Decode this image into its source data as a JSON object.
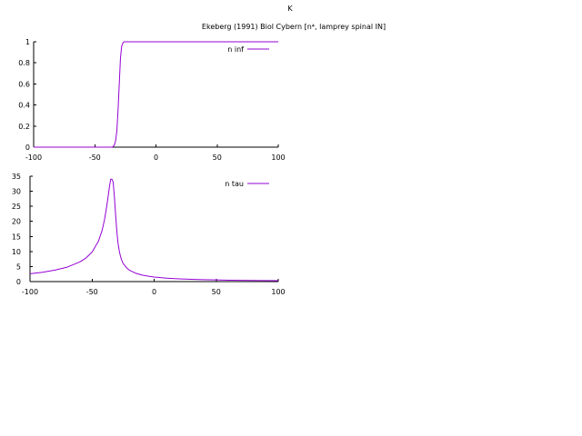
{
  "page": {
    "title": "K",
    "subtitle": "Ekeberg (1991) Biol Cybern [n⁴, lamprey spinal IN]"
  },
  "colors": {
    "series": "#9400d3",
    "axis": "#000000",
    "background": "#ffffff"
  },
  "chart_data": [
    {
      "type": "line",
      "title": "",
      "xlabel": "",
      "ylabel": "",
      "xlim": [
        -100,
        100
      ],
      "ylim": [
        0,
        1
      ],
      "x_ticks": [
        -100,
        -50,
        0,
        50,
        100
      ],
      "y_ticks": [
        0,
        0.2,
        0.4,
        0.6,
        0.8,
        1
      ],
      "y_tick_labels": [
        "0",
        "0.2",
        "0.4",
        "0.6",
        "0.8",
        "1"
      ],
      "grid": false,
      "legend": "top-right",
      "series": [
        {
          "name": "n inf",
          "x": [
            -100,
            -40,
            -36,
            -35,
            -34,
            -33,
            -32,
            -31,
            -30,
            -29,
            -28,
            -27,
            -26,
            -25,
            -20,
            0,
            50,
            100
          ],
          "y": [
            0,
            0,
            0,
            0.005,
            0.02,
            0.06,
            0.15,
            0.35,
            0.6,
            0.85,
            0.96,
            0.99,
            1,
            1,
            1,
            1,
            1,
            1
          ]
        }
      ]
    },
    {
      "type": "line",
      "title": "",
      "xlabel": "",
      "ylabel": "",
      "xlim": [
        -100,
        100
      ],
      "ylim": [
        0,
        35
      ],
      "x_ticks": [
        -100,
        -50,
        0,
        50,
        100
      ],
      "y_ticks": [
        0,
        5,
        10,
        15,
        20,
        25,
        30,
        35
      ],
      "y_tick_labels": [
        "0",
        "5",
        "10",
        "15",
        "20",
        "25",
        "30",
        "35"
      ],
      "grid": false,
      "legend": "top-right",
      "series": [
        {
          "name": "n tau",
          "x": [
            -100,
            -90,
            -80,
            -70,
            -60,
            -55,
            -50,
            -45,
            -42,
            -40,
            -38,
            -37,
            -36,
            -35,
            -34,
            -33,
            -32,
            -31,
            -30,
            -29,
            -28,
            -27,
            -26,
            -25,
            -22,
            -20,
            -15,
            -10,
            -5,
            0,
            10,
            20,
            30,
            40,
            50,
            60,
            70,
            80,
            90,
            100
          ],
          "y": [
            2.6,
            3.1,
            3.8,
            4.8,
            6.5,
            7.8,
            9.8,
            13.3,
            16.9,
            20.5,
            25.5,
            28.5,
            31.5,
            34,
            34,
            33,
            28,
            22,
            16.5,
            12.5,
            10,
            8.2,
            7,
            6,
            4.5,
            3.8,
            2.8,
            2.2,
            1.8,
            1.5,
            1.15,
            0.92,
            0.76,
            0.64,
            0.55,
            0.47,
            0.41,
            0.37,
            0.33,
            0.3
          ]
        }
      ]
    }
  ]
}
